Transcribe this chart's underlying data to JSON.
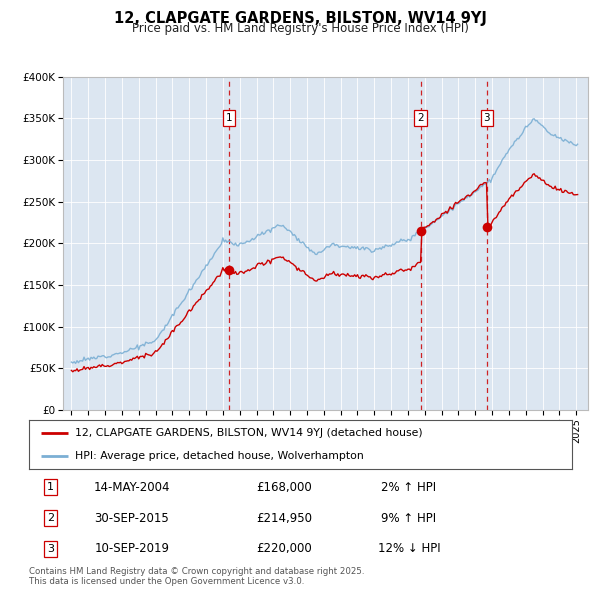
{
  "title1": "12, CLAPGATE GARDENS, BILSTON, WV14 9YJ",
  "title2": "Price paid vs. HM Land Registry's House Price Index (HPI)",
  "property_label": "12, CLAPGATE GARDENS, BILSTON, WV14 9YJ (detached house)",
  "hpi_label": "HPI: Average price, detached house, Wolverhampton",
  "transactions": [
    {
      "num": 1,
      "date": "14-MAY-2004",
      "price": 168000,
      "pct": "2%",
      "dir": "↑"
    },
    {
      "num": 2,
      "date": "30-SEP-2015",
      "price": 214950,
      "pct": "9%",
      "dir": "↑"
    },
    {
      "num": 3,
      "date": "10-SEP-2019",
      "price": 220000,
      "pct": "12%",
      "dir": "↓"
    }
  ],
  "transaction_dates_decimal": [
    2004.37,
    2015.75,
    2019.69
  ],
  "transaction_prices": [
    168000,
    214950,
    220000
  ],
  "ylim": [
    0,
    400000
  ],
  "yticks": [
    0,
    50000,
    100000,
    150000,
    200000,
    250000,
    300000,
    350000,
    400000
  ],
  "xlim_start": 1994.5,
  "xlim_end": 2025.7,
  "property_line_color": "#cc0000",
  "hpi_line_color": "#7bafd4",
  "vline_color": "#cc0000",
  "plot_bg_color": "#dce6f1",
  "copyright_text": "Contains HM Land Registry data © Crown copyright and database right 2025.\nThis data is licensed under the Open Government Licence v3.0."
}
